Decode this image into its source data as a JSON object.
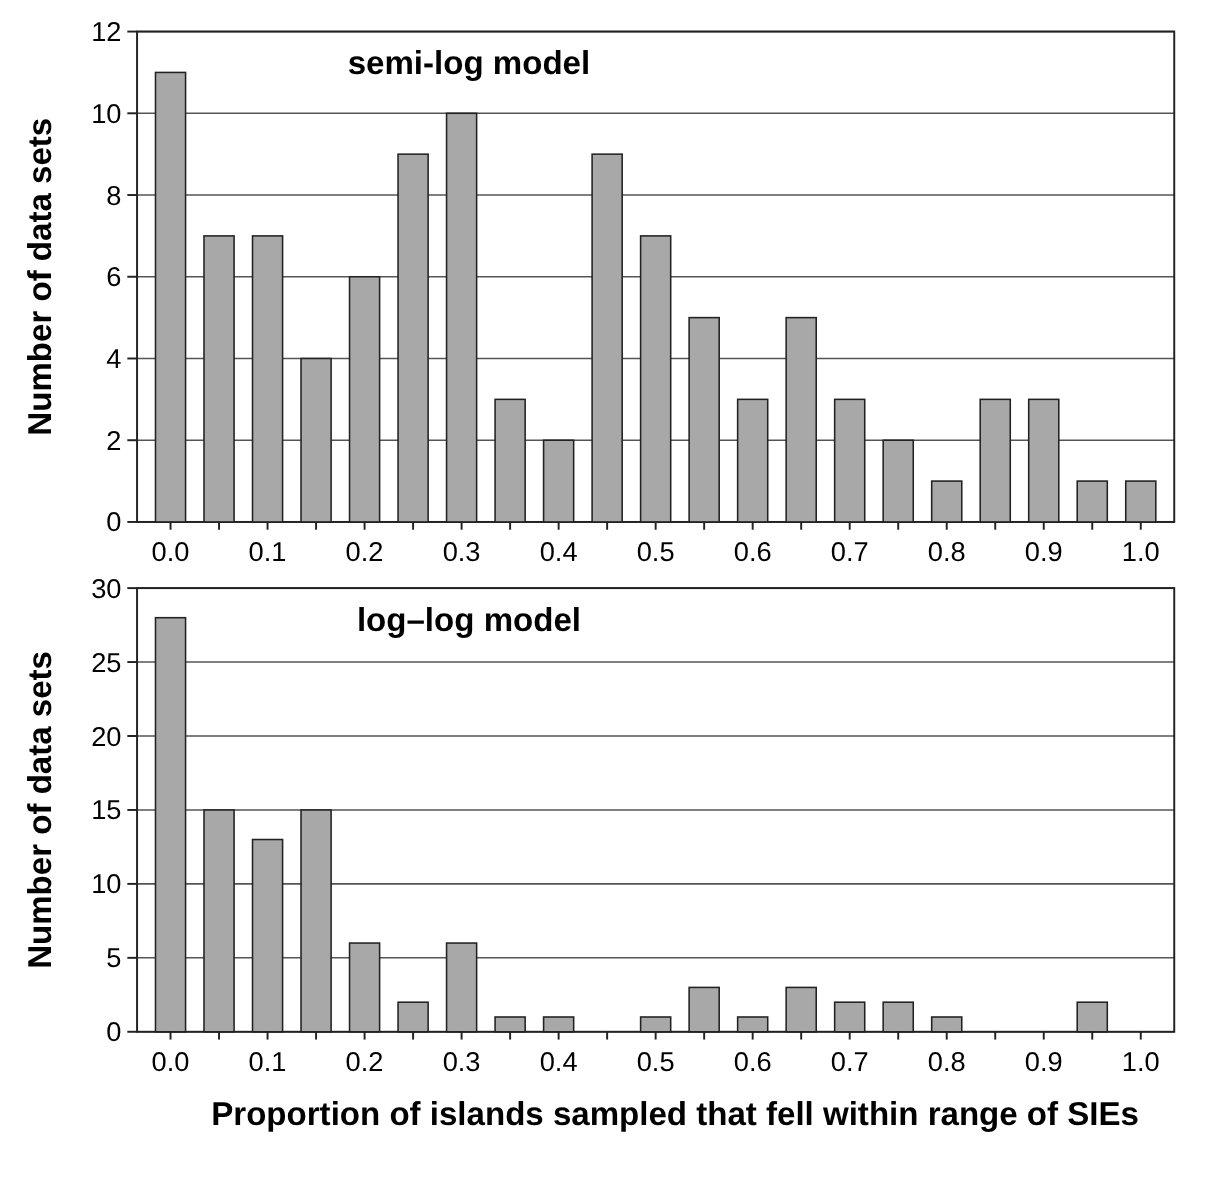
{
  "chart_data": [
    {
      "type": "bar",
      "title": "semi-log model",
      "ylabel": "Number of data sets",
      "categories": [
        "0.0",
        null,
        "0.1",
        null,
        "0.2",
        null,
        "0.3",
        null,
        "0.4",
        null,
        "0.5",
        null,
        "0.6",
        null,
        "0.7",
        null,
        "0.8",
        null,
        "0.9",
        null,
        "1.0"
      ],
      "values": [
        11,
        7,
        7,
        4,
        6,
        9,
        10,
        3,
        2,
        9,
        7,
        5,
        3,
        5,
        3,
        2,
        1,
        3,
        3,
        1,
        1
      ],
      "color": "#a8a8a8",
      "ylim": [
        0,
        12
      ],
      "yticks": [
        0,
        2,
        4,
        6,
        8,
        10,
        12
      ],
      "grid": "y"
    },
    {
      "type": "bar",
      "title": "log–log model",
      "ylabel": "Number of data sets",
      "xlabel": "Proportion of islands sampled that fell within range of SIEs",
      "categories": [
        "0.0",
        null,
        "0.1",
        null,
        "0.2",
        null,
        "0.3",
        null,
        "0.4",
        null,
        "0.5",
        null,
        "0.6",
        null,
        "0.7",
        null,
        "0.8",
        null,
        "0.9",
        null,
        "1.0"
      ],
      "values": [
        28,
        15,
        13,
        15,
        6,
        2,
        6,
        1,
        1,
        0,
        1,
        3,
        1,
        3,
        2,
        2,
        1,
        0,
        0,
        2,
        0
      ],
      "color": "#a8a8a8",
      "ylim": [
        0,
        30
      ],
      "yticks": [
        0,
        5,
        10,
        15,
        20,
        25,
        30
      ],
      "grid": "y"
    }
  ]
}
